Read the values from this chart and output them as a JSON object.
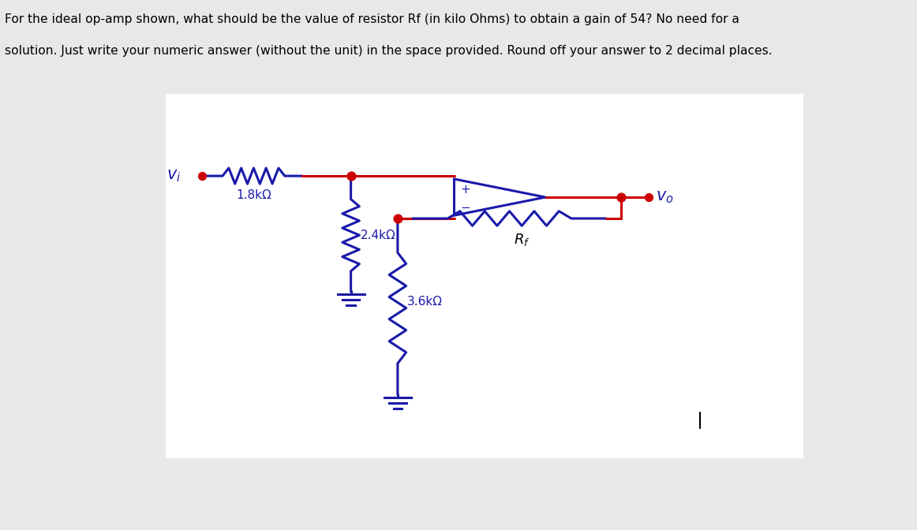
{
  "title_line1": "For the ideal op-amp shown, what should be the value of resistor Rf (in kilo Ohms) to obtain a gain of 54? No need for a",
  "title_line2": "solution. Just write your numeric answer (without the unit) in the space provided. Round off your answer to 2 decimal places.",
  "bg_color": "#e8e8e8",
  "panel_color": "#ffffff",
  "red": "#cc0000",
  "blue": "#1a1aaa",
  "black": "#000000",
  "r1_label": "1.8kΩ",
  "r2_label": "2.4kΩ",
  "r3_label": "3.6kΩ",
  "rf_label": "R_f",
  "vi_label": "v_i",
  "vo_label": "v_o",
  "lw": 2.2
}
